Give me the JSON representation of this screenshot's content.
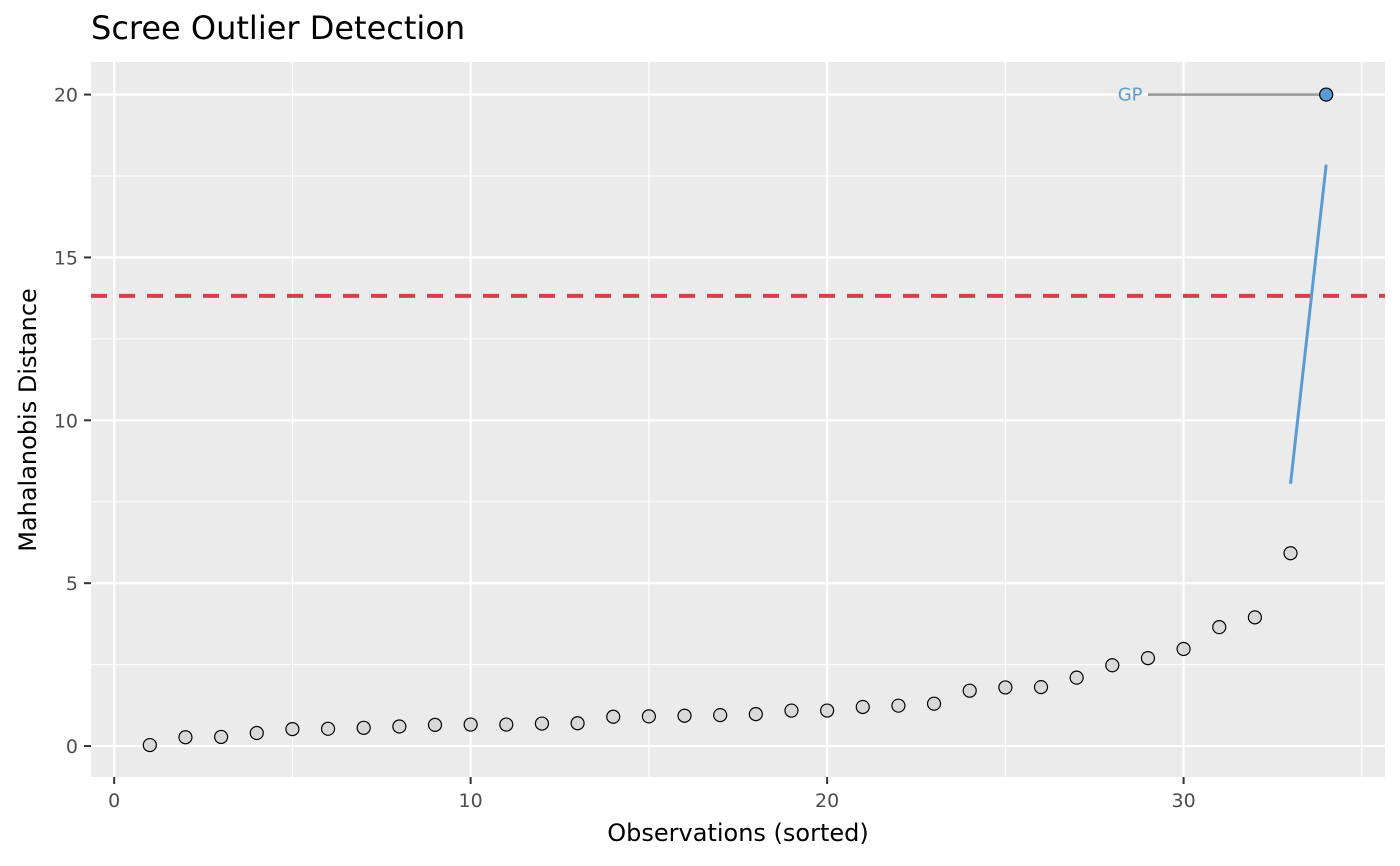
{
  "chart_data": {
    "type": "scatter",
    "title": "Scree Outlier Detection",
    "xlabel": "Observations (sorted)",
    "ylabel": "Mahalanobis Distance",
    "xlim": [
      -0.65,
      35.65
    ],
    "ylim": [
      -0.95,
      21.0
    ],
    "x_ticks": [
      0,
      10,
      20,
      30
    ],
    "x_tick_labels": [
      "0",
      "10",
      "20",
      "30"
    ],
    "y_ticks": [
      0,
      5,
      10,
      15,
      20
    ],
    "y_tick_labels": [
      "0",
      "5",
      "10",
      "15",
      "20"
    ],
    "grid": true,
    "legend": "none",
    "colors": {
      "panel_background": "#ebebeb",
      "grid": "#ffffff",
      "threshold_line": "#d6404e",
      "outlier_point": "#5b9bd5",
      "regular_point": "#d9d9d9",
      "point_edge": "#000000",
      "label_connector": "#999999",
      "trend_segment": "#5b9bd5"
    },
    "threshold": 13.82,
    "points": [
      {
        "x": 1,
        "y": 0.03
      },
      {
        "x": 2,
        "y": 0.27
      },
      {
        "x": 3,
        "y": 0.28
      },
      {
        "x": 4,
        "y": 0.4
      },
      {
        "x": 5,
        "y": 0.52
      },
      {
        "x": 6,
        "y": 0.53
      },
      {
        "x": 7,
        "y": 0.56
      },
      {
        "x": 8,
        "y": 0.6
      },
      {
        "x": 9,
        "y": 0.65
      },
      {
        "x": 10,
        "y": 0.66
      },
      {
        "x": 11,
        "y": 0.66
      },
      {
        "x": 12,
        "y": 0.69
      },
      {
        "x": 13,
        "y": 0.7
      },
      {
        "x": 14,
        "y": 0.9
      },
      {
        "x": 15,
        "y": 0.91
      },
      {
        "x": 16,
        "y": 0.93
      },
      {
        "x": 17,
        "y": 0.95
      },
      {
        "x": 18,
        "y": 0.98
      },
      {
        "x": 19,
        "y": 1.09
      },
      {
        "x": 20,
        "y": 1.09
      },
      {
        "x": 21,
        "y": 1.2
      },
      {
        "x": 22,
        "y": 1.24
      },
      {
        "x": 23,
        "y": 1.3
      },
      {
        "x": 24,
        "y": 1.7
      },
      {
        "x": 25,
        "y": 1.8
      },
      {
        "x": 26,
        "y": 1.81
      },
      {
        "x": 27,
        "y": 2.1
      },
      {
        "x": 28,
        "y": 2.48
      },
      {
        "x": 29,
        "y": 2.7
      },
      {
        "x": 30,
        "y": 2.98
      },
      {
        "x": 31,
        "y": 3.65
      },
      {
        "x": 32,
        "y": 3.95
      },
      {
        "x": 33,
        "y": 5.92
      },
      {
        "x": 34,
        "y": 20.0,
        "outlier": true
      }
    ],
    "annotations": [
      {
        "label": "GP",
        "x": 28.5,
        "y": 20.0,
        "connector_from_x": 29.0,
        "connector_to_x": 34.0,
        "color": "#5b9bd5"
      }
    ],
    "trend_segment": {
      "x1": 33,
      "y1": 8.05,
      "x2": 34,
      "y2": 17.85
    }
  }
}
